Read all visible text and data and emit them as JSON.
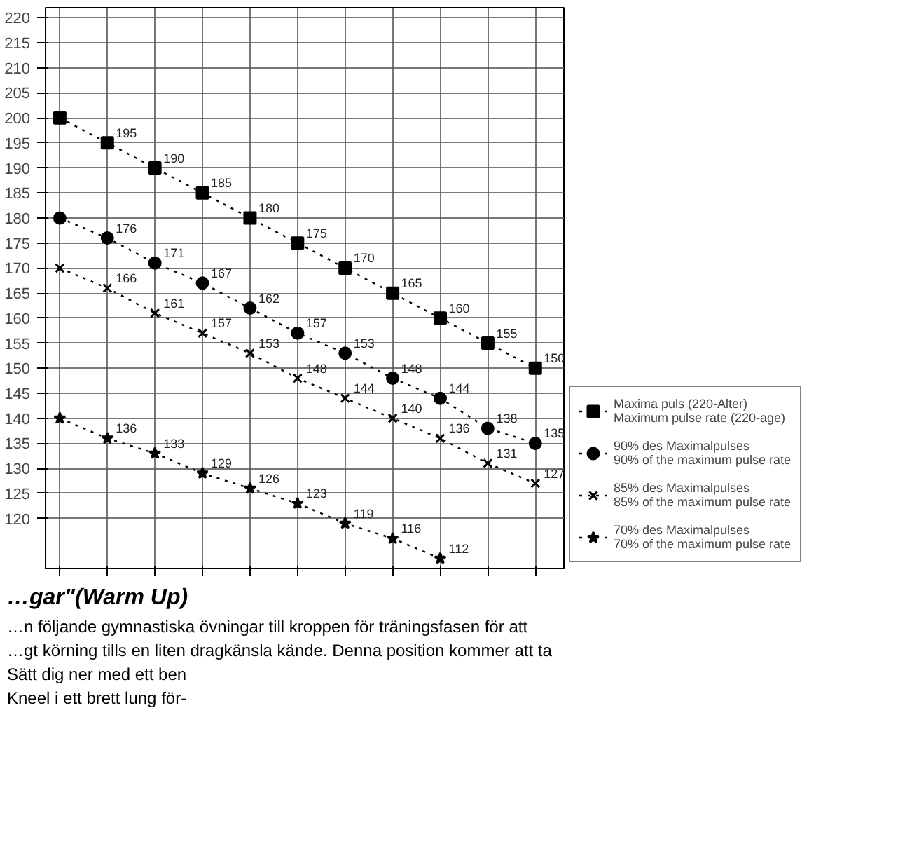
{
  "chart_data": {
    "type": "line",
    "categories": [
      null,
      null,
      null,
      null,
      null,
      null,
      null,
      null,
      null,
      null,
      null
    ],
    "series": [
      {
        "name": "Maxima puls (220-Alter)\nMaximum pulse rate (220-age)",
        "color": "#000000",
        "marker": "square",
        "values": [
          200,
          195,
          190,
          185,
          180,
          175,
          170,
          165,
          160,
          155,
          150
        ],
        "value_labels": [
          null,
          "195",
          "190",
          "185",
          "180",
          "175",
          "170",
          "165",
          "160",
          "155",
          "150"
        ]
      },
      {
        "name": "90% des Maximalpulses\n90% of the maximum pulse rate",
        "color": "#000000",
        "marker": "circle",
        "values": [
          180,
          176,
          171,
          167,
          162,
          157,
          153,
          148,
          144,
          138,
          135
        ],
        "value_labels": [
          null,
          "176",
          "171",
          "167",
          "162",
          "157",
          "153",
          "148",
          "144",
          "138",
          "135"
        ]
      },
      {
        "name": "85% des Maximalpulses\n85% of the maximum pulse rate",
        "color": "#000000",
        "marker": "cross",
        "values": [
          170,
          166,
          161,
          157,
          153,
          148,
          144,
          140,
          136,
          131,
          127
        ],
        "value_labels": [
          null,
          "166",
          "161",
          "157",
          "153",
          "148",
          "144",
          "140",
          "136",
          "131",
          "127"
        ]
      },
      {
        "name": "70% des Maximalpulses\n70% of the maximum pulse rate",
        "color": "#000000",
        "marker": "star",
        "values": [
          140,
          136,
          133,
          129,
          126,
          123,
          119,
          116,
          112,
          null,
          null
        ],
        "value_labels": [
          null,
          "136",
          "133",
          "129",
          "126",
          "123",
          "119",
          "116",
          "112",
          null,
          null
        ]
      }
    ],
    "ylim": [
      110,
      222
    ],
    "yticks": [
      120,
      125,
      130,
      135,
      140,
      145,
      150,
      155,
      160,
      165,
      170,
      175,
      180,
      185,
      190,
      195,
      200,
      205,
      210,
      215,
      220
    ],
    "tick_labels": "y",
    "grid": true,
    "legend": "bottom right",
    "line_style": "dotted",
    "annotations": [
      "…gar\"(Warm Up)",
      "…n följande gymnastiska övningar till kroppen för träningsfasen för att",
      "…gt körning tills en liten dragkänsla kände. Denna position kommer att ta",
      "Sätt dig ner med ett ben",
      "Kneel i ett brett lung för-"
    ]
  }
}
